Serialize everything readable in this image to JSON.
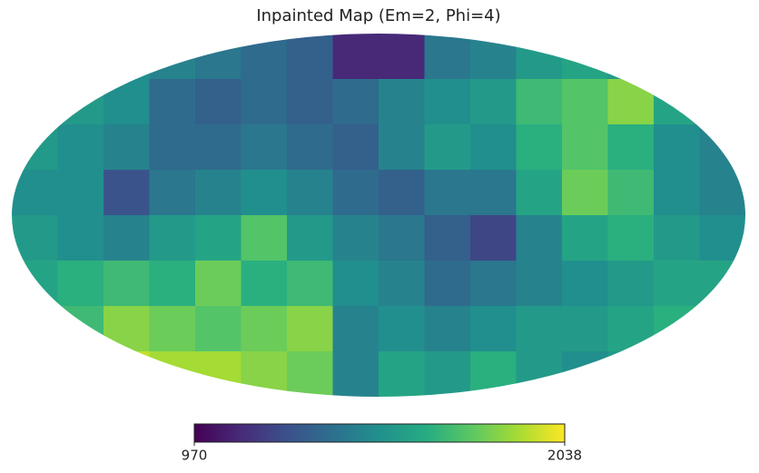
{
  "chart_data": {
    "type": "mollweide",
    "title": "Inpainted Map (Em=2, Phi=4)",
    "pixels": [
      [
        1550,
        1550,
        1500,
        1450,
        1400,
        1350,
        1300,
        1100,
        1100,
        1400,
        1450,
        1550,
        1600,
        1550,
        1500,
        1500
      ],
      [
        1600,
        1550,
        1500,
        1350,
        1300,
        1350,
        1300,
        1350,
        1450,
        1500,
        1550,
        1700,
        1750,
        1850,
        1600,
        1550
      ],
      [
        1550,
        1500,
        1450,
        1350,
        1350,
        1400,
        1350,
        1300,
        1450,
        1550,
        1500,
        1650,
        1750,
        1650,
        1500,
        1450
      ],
      [
        1500,
        1500,
        1250,
        1400,
        1450,
        1500,
        1450,
        1350,
        1300,
        1400,
        1400,
        1600,
        1800,
        1700,
        1500,
        1450
      ],
      [
        1550,
        1500,
        1450,
        1550,
        1600,
        1750,
        1550,
        1450,
        1400,
        1300,
        1200,
        1450,
        1600,
        1650,
        1550,
        1500
      ],
      [
        1600,
        1650,
        1700,
        1650,
        1800,
        1650,
        1700,
        1500,
        1450,
        1350,
        1400,
        1450,
        1500,
        1550,
        1600,
        1600
      ],
      [
        1650,
        1700,
        1850,
        1800,
        1750,
        1800,
        1850,
        1450,
        1500,
        1450,
        1500,
        1550,
        1550,
        1600,
        1650,
        1650
      ],
      [
        1700,
        1750,
        1950,
        1900,
        1900,
        1850,
        1800,
        1450,
        1600,
        1550,
        1650,
        1550,
        1500,
        1550,
        1600,
        1600
      ]
    ],
    "clim": [
      970,
      2038
    ],
    "cticks": [
      970,
      2038
    ]
  }
}
